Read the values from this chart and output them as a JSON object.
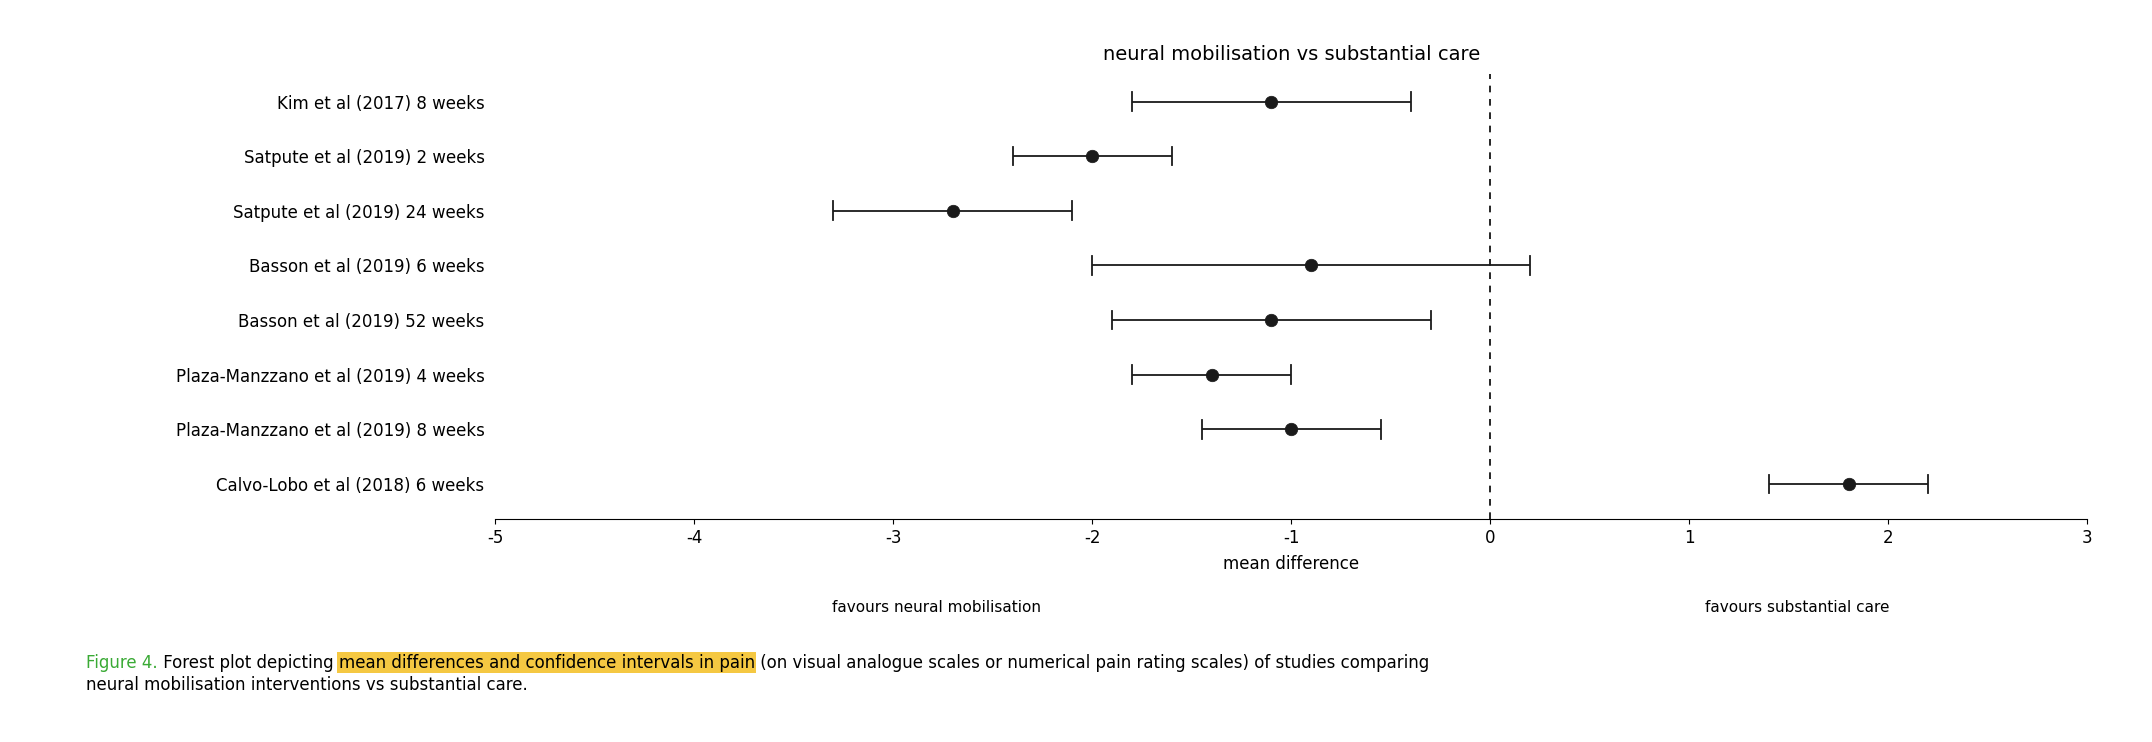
{
  "title": "neural mobilisation vs substantial care",
  "studies": [
    "Kim et al (2017) 8 weeks",
    "Satpute et al (2019) 2 weeks",
    "Satpute et al (2019) 24 weeks",
    "Basson et al (2019) 6 weeks",
    "Basson et al (2019) 52 weeks",
    "Plaza-Manzzano et al (2019) 4 weeks",
    "Plaza-Manzzano et al (2019) 8 weeks",
    "Calvo-Lobo et al (2018) 6 weeks"
  ],
  "means": [
    -1.1,
    -2.0,
    -2.7,
    -0.9,
    -1.1,
    -1.4,
    -1.0,
    1.8
  ],
  "ci_lower": [
    -1.8,
    -2.4,
    -3.3,
    -2.0,
    -1.9,
    -1.8,
    -1.45,
    1.4
  ],
  "ci_upper": [
    -0.4,
    -1.6,
    -2.1,
    0.2,
    -0.3,
    -1.0,
    -0.55,
    2.2
  ],
  "xlim": [
    -5,
    3
  ],
  "xticks": [
    -5,
    -4,
    -3,
    -2,
    -1,
    0,
    1,
    2,
    3
  ],
  "xlabel": "mean difference",
  "favours_left": "favours neural mobilisation",
  "favours_right": "favours substantial care",
  "marker_color": "#1a1a1a",
  "marker_size": 9,
  "line_color": "#1a1a1a",
  "dashed_line_x": 0,
  "background_color": "white",
  "caption_figure_label": "Figure 4.",
  "caption_figure_color": "#3aaa35",
  "caption_pre_highlight": " Forest plot depicting ",
  "caption_highlight": "mean differences and confidence intervals in pain",
  "caption_highlight_bgcolor": "#f5c842",
  "caption_post_highlight": " (on visual analogue scales or numerical pain rating scales) of studies comparing",
  "caption_line2": "neural mobilisation interventions vs substantial care.",
  "title_fontsize": 14,
  "tick_fontsize": 12,
  "label_fontsize": 12,
  "caption_fontsize": 12,
  "favours_fontsize": 11
}
